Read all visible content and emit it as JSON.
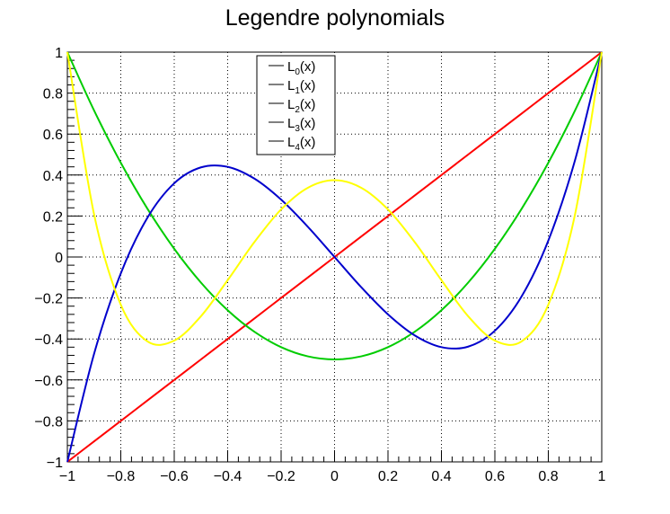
{
  "chart_data": {
    "type": "line",
    "title": "Legendre polynomials",
    "xlabel": "",
    "ylabel": "",
    "xlim": [
      -1,
      1
    ],
    "ylim": [
      -1,
      1
    ],
    "grid": true,
    "legend_position": "top-center",
    "x_ticks": [
      "−1",
      "−0.8",
      "−0.6",
      "−0.4",
      "−0.2",
      "0",
      "0.2",
      "0.4",
      "0.6",
      "0.8",
      "1"
    ],
    "y_ticks": [
      "−1",
      "−0.8",
      "−0.6",
      "−0.4",
      "−0.2",
      "0",
      "0.2",
      "0.4",
      "0.6",
      "0.8",
      "1"
    ],
    "x": [
      -1,
      -0.9,
      -0.8,
      -0.7,
      -0.6,
      -0.5,
      -0.4,
      -0.3,
      -0.2,
      -0.1,
      0,
      0.1,
      0.2,
      0.3,
      0.4,
      0.5,
      0.6,
      0.7,
      0.8,
      0.9,
      1
    ],
    "series": [
      {
        "name": "L",
        "subscript": "0",
        "suffix": "(x)",
        "color": "#000000",
        "visible": false,
        "values": [
          1,
          1,
          1,
          1,
          1,
          1,
          1,
          1,
          1,
          1,
          1,
          1,
          1,
          1,
          1,
          1,
          1,
          1,
          1,
          1,
          1
        ]
      },
      {
        "name": "L",
        "subscript": "1",
        "suffix": "(x)",
        "color": "#ff0000",
        "visible": true,
        "values": [
          -1,
          -0.9,
          -0.8,
          -0.7,
          -0.6,
          -0.5,
          -0.4,
          -0.3,
          -0.2,
          -0.1,
          0,
          0.1,
          0.2,
          0.3,
          0.4,
          0.5,
          0.6,
          0.7,
          0.8,
          0.9,
          1
        ]
      },
      {
        "name": "L",
        "subscript": "2",
        "suffix": "(x)",
        "color": "#00cc00",
        "visible": true,
        "values": [
          1,
          0.715,
          0.46,
          0.235,
          0.04,
          -0.125,
          -0.26,
          -0.365,
          -0.44,
          -0.485,
          -0.5,
          -0.485,
          -0.44,
          -0.365,
          -0.26,
          -0.125,
          0.04,
          0.235,
          0.46,
          0.715,
          1
        ]
      },
      {
        "name": "L",
        "subscript": "3",
        "suffix": "(x)",
        "color": "#0000cc",
        "visible": true,
        "values": [
          -1,
          -0.4725,
          -0.08,
          0.1925,
          0.36,
          0.4375,
          0.44,
          0.3825,
          0.28,
          0.1475,
          0,
          -0.1475,
          -0.28,
          -0.3825,
          -0.44,
          -0.4375,
          -0.36,
          -0.1925,
          0.08,
          0.4725,
          1
        ]
      },
      {
        "name": "L",
        "subscript": "4",
        "suffix": "(x)",
        "color": "#ffff00",
        "visible": true,
        "values": [
          1,
          0.2079,
          -0.233,
          -0.4121,
          -0.408,
          -0.2891,
          -0.113,
          0.0729,
          0.232,
          0.3379,
          0.375,
          0.3379,
          0.232,
          0.0729,
          -0.113,
          -0.2891,
          -0.408,
          -0.4121,
          -0.233,
          0.2079,
          1
        ]
      }
    ]
  }
}
